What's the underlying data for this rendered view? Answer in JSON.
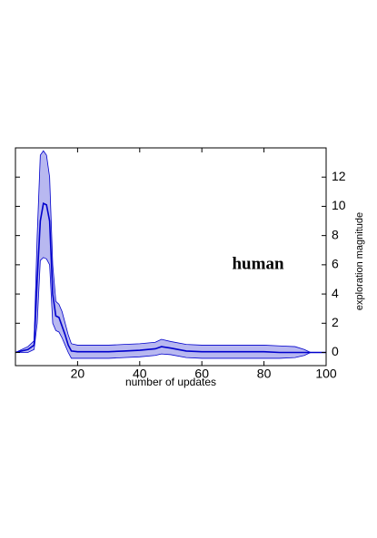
{
  "chart_data": {
    "type": "line",
    "xlabel": "number of updates",
    "ylabel": "exploration magnitude",
    "annotation": "human",
    "x": [
      0,
      4,
      6,
      7,
      8,
      9,
      10,
      11,
      12,
      13,
      14,
      15,
      16,
      17,
      18,
      20,
      25,
      30,
      35,
      40,
      45,
      47,
      50,
      55,
      60,
      70,
      80,
      85,
      90,
      93,
      95,
      100
    ],
    "series": [
      {
        "color": "#0000cc",
        "values": [
          0,
          0.2,
          0.5,
          5,
          9,
          10.2,
          10.1,
          9,
          4,
          2.5,
          2.4,
          1.8,
          1.2,
          0.5,
          0.1,
          0.05,
          0.05,
          0.05,
          0.1,
          0.15,
          0.25,
          0.4,
          0.3,
          0.1,
          0.05,
          0.05,
          0.05,
          0,
          0,
          0,
          0,
          0
        ]
      }
    ],
    "band_upper": [
      0,
      0.4,
      0.8,
      8,
      13.5,
      13.8,
      13.5,
      12,
      6,
      3.5,
      3.3,
      2.8,
      2,
      1.2,
      0.6,
      0.5,
      0.5,
      0.5,
      0.55,
      0.6,
      0.7,
      0.9,
      0.75,
      0.55,
      0.5,
      0.5,
      0.5,
      0.45,
      0.4,
      0.2,
      0,
      0
    ],
    "band_lower": [
      0,
      0,
      0.2,
      2,
      6.3,
      6.5,
      6.4,
      6,
      2,
      1.5,
      1.4,
      1,
      0.5,
      0,
      -0.4,
      -0.4,
      -0.4,
      -0.4,
      -0.35,
      -0.3,
      -0.2,
      -0.1,
      -0.15,
      -0.35,
      -0.4,
      -0.4,
      -0.4,
      -0.4,
      -0.35,
      -0.2,
      0,
      0
    ],
    "band_color": "#b8b8f0",
    "xlim": [
      0,
      100
    ],
    "ylim": [
      -0.9,
      14
    ],
    "xticks": [
      20,
      40,
      60,
      80,
      100
    ],
    "yticks": [
      0,
      2,
      4,
      6,
      8,
      10,
      12
    ],
    "y_axis_side": "right"
  }
}
